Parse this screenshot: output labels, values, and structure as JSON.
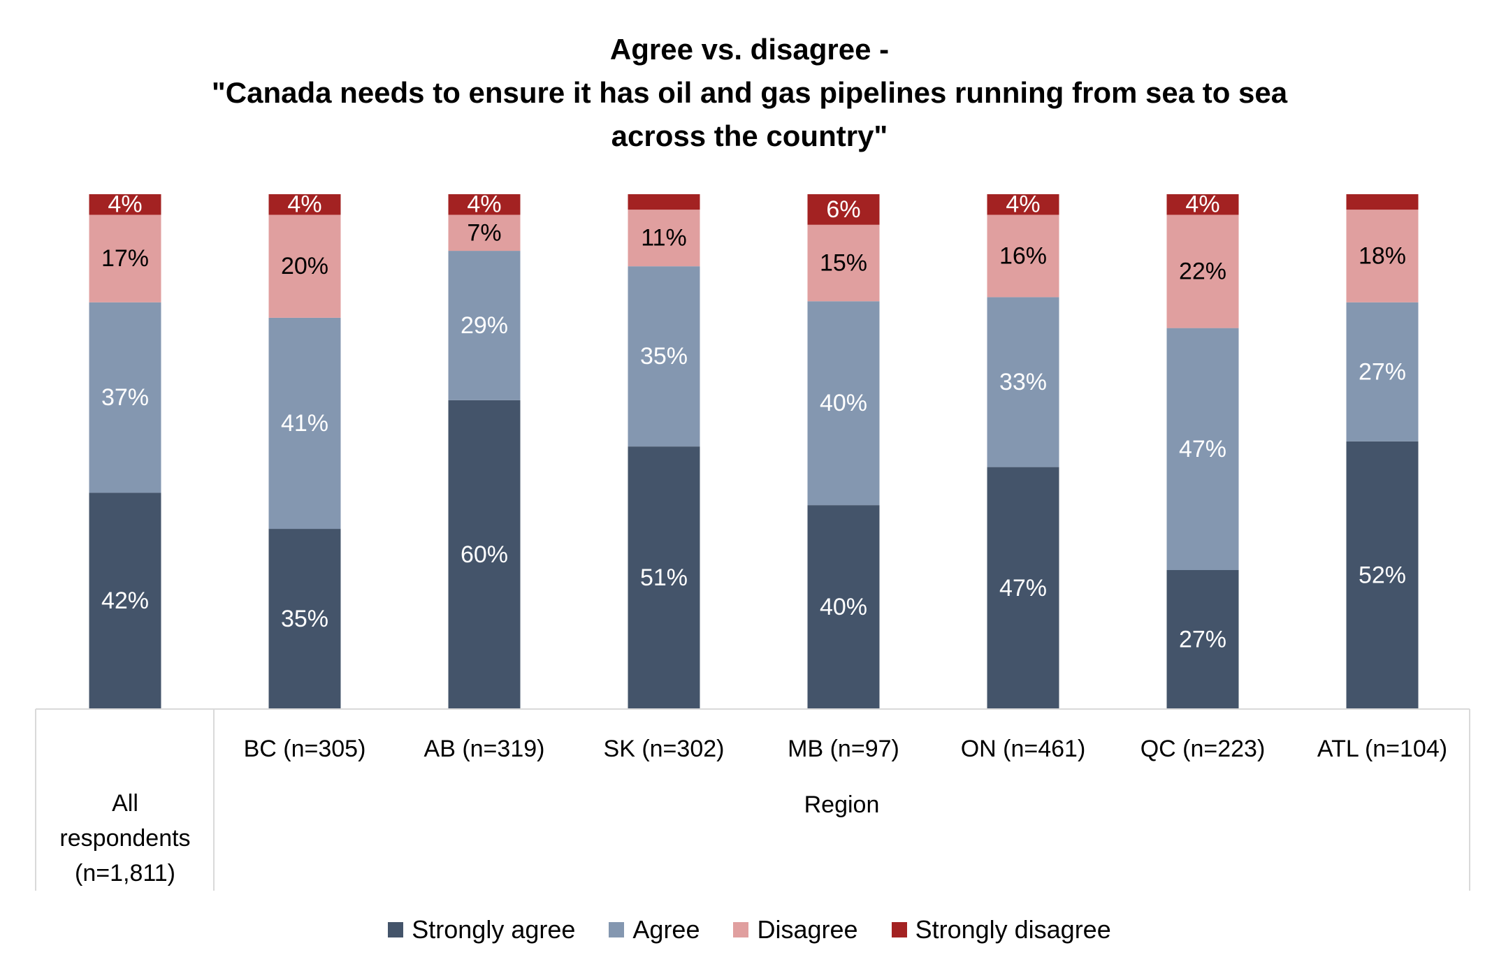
{
  "title_lines": [
    "Agree vs. disagree -",
    "\"Canada needs to ensure it has oil and gas pipelines running from sea to sea",
    "across the country\""
  ],
  "colors": {
    "strongly_agree": "#44546a",
    "agree": "#8497b0",
    "disagree": "#e09f9f",
    "strongly_disagree": "#a32222",
    "label_light": "#ffffff",
    "label_dark": "#000000"
  },
  "chart_data": {
    "type": "bar",
    "stacked": true,
    "percent": true,
    "categories": [
      "All respondents (n=1,811)",
      "BC (n=305)",
      "AB (n=319)",
      "SK (n=302)",
      "MB (n=97)",
      "ON (n=461)",
      "QC (n=223)",
      "ATL (n=104)"
    ],
    "category_lines": [
      [
        "All",
        "respondents",
        "(n=1,811)"
      ],
      [
        "BC (n=305)"
      ],
      [
        "AB (n=319)"
      ],
      [
        "SK (n=302)"
      ],
      [
        "MB (n=97)"
      ],
      [
        "ON (n=461)"
      ],
      [
        "QC (n=223)"
      ],
      [
        "ATL (n=104)"
      ]
    ],
    "group_label": "Region",
    "series": [
      {
        "name": "Strongly agree",
        "values": [
          42,
          35,
          60,
          51,
          40,
          47,
          27,
          52
        ],
        "labels": [
          "42%",
          "35%",
          "60%",
          "51%",
          "40%",
          "47%",
          "27%",
          "52%"
        ]
      },
      {
        "name": "Agree",
        "values": [
          37,
          41,
          29,
          35,
          40,
          33,
          47,
          27
        ],
        "labels": [
          "37%",
          "41%",
          "29%",
          "35%",
          "40%",
          "33%",
          "47%",
          "27%"
        ]
      },
      {
        "name": "Disagree",
        "values": [
          17,
          20,
          7,
          11,
          15,
          16,
          22,
          18
        ],
        "labels": [
          "17%",
          "20%",
          "7%",
          "11%",
          "15%",
          "16%",
          "22%",
          "18%"
        ]
      },
      {
        "name": "Strongly disagree",
        "values": [
          4,
          4,
          4,
          3,
          6,
          4,
          4,
          3
        ],
        "labels": [
          "4%",
          "4%",
          "4%",
          "",
          "6%",
          "4%",
          "4%",
          ""
        ]
      }
    ],
    "ylim": [
      0,
      100
    ],
    "legend_position": "bottom"
  }
}
